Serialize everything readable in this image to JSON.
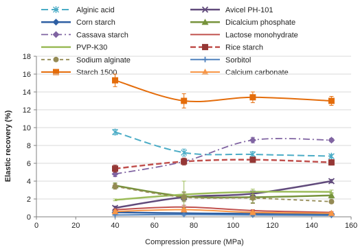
{
  "chart_data": {
    "type": "line",
    "xlabel": "Compression pressure (MPa)",
    "ylabel": "Elastic recovery (%)",
    "xlim": [
      0,
      160
    ],
    "ylim": [
      0,
      18
    ],
    "xticks": [
      0,
      20,
      40,
      60,
      80,
      100,
      120,
      140,
      160
    ],
    "yticks": [
      0,
      2,
      4,
      6,
      8,
      10,
      12,
      14,
      16,
      18
    ],
    "legend_position": "top",
    "x": [
      40,
      75,
      110,
      150
    ],
    "series": [
      {
        "name": "Alginic acid",
        "values": [
          9.5,
          7.2,
          7.0,
          6.8
        ],
        "error": [
          0.3,
          0.4,
          0.3,
          0.2
        ],
        "color": "#4bacc6",
        "dash": "10,5",
        "marker": "asterisk",
        "width": 2
      },
      {
        "name": "Avicel PH-101",
        "values": [
          1.0,
          2.2,
          2.6,
          4.0
        ],
        "error": [
          0.2,
          0.3,
          0.3,
          0.2
        ],
        "color": "#604a7b",
        "dash": "",
        "marker": "x",
        "width": 2.5
      },
      {
        "name": "Corn starch",
        "values": [
          0.5,
          0.4,
          0.35,
          0.3
        ],
        "error": [
          0.1,
          0.1,
          0.1,
          0.1
        ],
        "color": "#2e5fa3",
        "dash": "",
        "marker": "diamond",
        "width": 2.5
      },
      {
        "name": "Dicalcium phosphate",
        "values": [
          3.5,
          2.3,
          2.2,
          2.4
        ],
        "error": [
          0.3,
          0.5,
          0.6,
          0.3
        ],
        "color": "#77933c",
        "dash": "",
        "marker": "triangle",
        "width": 2.5
      },
      {
        "name": "Cassava starch",
        "values": [
          4.8,
          6.2,
          8.6,
          8.6
        ],
        "error": [
          0.3,
          0.3,
          0.3,
          0.2
        ],
        "color": "#8064a2",
        "dash": "10,4,2,4",
        "marker": "diamond",
        "width": 1.8
      },
      {
        "name": "Lactose monohydrate",
        "values": [
          0.8,
          1.1,
          0.7,
          0.5
        ],
        "error": [
          0.1,
          0.2,
          0.1,
          0.1
        ],
        "color": "#c0504d",
        "dash": "",
        "marker": "none",
        "width": 2
      },
      {
        "name": "PVP-K30",
        "values": [
          1.9,
          2.5,
          2.8,
          2.8
        ],
        "error": [
          0.1,
          1.5,
          0.3,
          0.2
        ],
        "color": "#9bbb59",
        "dash": "",
        "marker": "none",
        "width": 2.5
      },
      {
        "name": "Rice starch",
        "values": [
          5.4,
          6.2,
          6.4,
          6.1
        ],
        "error": [
          0.4,
          0.4,
          0.3,
          0.3
        ],
        "color": "#c0504d",
        "dash": "8,4",
        "marker": "square",
        "width": 2.5,
        "marker_color": "#953735"
      },
      {
        "name": "Sodium alginate",
        "values": [
          3.4,
          2.2,
          2.1,
          1.7
        ],
        "error": [
          0.3,
          0.5,
          0.6,
          0.2
        ],
        "color": "#948a54",
        "dash": "5,4",
        "marker": "circle",
        "width": 1.8
      },
      {
        "name": "Sorbitol",
        "values": [
          0.2,
          0.25,
          0.2,
          0.15
        ],
        "error": [
          0.05,
          0.1,
          0.1,
          0.05
        ],
        "color": "#4f81bd",
        "dash": "",
        "marker": "plus",
        "width": 2
      },
      {
        "name": "Starch 1500",
        "values": [
          15.3,
          13.0,
          13.4,
          13.0
        ],
        "error": [
          0.7,
          0.8,
          0.6,
          0.5
        ],
        "color": "#e46c0a",
        "dash": "",
        "marker": "square",
        "width": 2
      },
      {
        "name": "Calcium carbonate",
        "values": [
          0.6,
          0.8,
          0.5,
          0.4
        ],
        "error": [
          0.1,
          0.1,
          0.1,
          0.1
        ],
        "color": "#f79646",
        "dash": "",
        "marker": "triangle",
        "width": 2
      }
    ]
  }
}
